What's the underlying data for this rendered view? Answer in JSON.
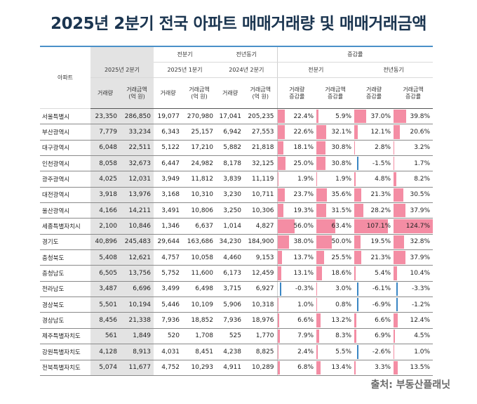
{
  "title": "2025년 2분기 전국 아파트 매매거래량 및 매매거래금액",
  "source": "출처: 부동산플래닛",
  "header": {
    "region": "아파트",
    "q2_2025": "2025년 2분기",
    "prev_quarter": "전분기",
    "prev_year": "전년동기",
    "change": "증감률",
    "q1_2025": "2025년 1분기",
    "q2_2024": "2024년 2분기",
    "change_prev_quarter": "전분기",
    "change_prev_year": "전년동기",
    "volume": "거래량",
    "amount_line1": "거래금액",
    "amount_line2": "(억 원)",
    "vol_change_line1": "거래량",
    "vol_change_line2": "증감률",
    "amt_change_line1": "거래금액",
    "amt_change_line2": "증감률"
  },
  "colors": {
    "title": "#1b3550",
    "positive_bar": "#f48da4",
    "negative_bar": "#3a86c4",
    "header_grey": "#e3e3e3"
  },
  "rows": [
    {
      "region": "서울특별시",
      "vol": "23,350",
      "amt": "286,850",
      "q1_vol": "19,077",
      "q1_amt": "270,980",
      "py_vol": "17,041",
      "py_amt": "205,235",
      "qv": "22.4%",
      "qa": "5.9%",
      "yv": "37.0%",
      "ya": "39.8%"
    },
    {
      "region": "부산광역시",
      "vol": "7,779",
      "amt": "33,234",
      "q1_vol": "6,343",
      "q1_amt": "25,157",
      "py_vol": "6,942",
      "py_amt": "27,553",
      "qv": "22.6%",
      "qa": "32.1%",
      "yv": "12.1%",
      "ya": "20.6%"
    },
    {
      "region": "대구광역시",
      "vol": "6,048",
      "amt": "22,511",
      "q1_vol": "5,122",
      "q1_amt": "17,210",
      "py_vol": "5,882",
      "py_amt": "21,818",
      "qv": "18.1%",
      "qa": "30.8%",
      "yv": "2.8%",
      "ya": "3.2%"
    },
    {
      "region": "인천광역시",
      "vol": "8,058",
      "amt": "32,673",
      "q1_vol": "6,447",
      "q1_amt": "24,982",
      "py_vol": "8,178",
      "py_amt": "32,125",
      "qv": "25.0%",
      "qa": "30.8%",
      "yv": "-1.5%",
      "ya": "1.7%"
    },
    {
      "region": "광주광역시",
      "vol": "4,025",
      "amt": "12,031",
      "q1_vol": "3,949",
      "q1_amt": "11,812",
      "py_vol": "3,839",
      "py_amt": "11,119",
      "qv": "1.9%",
      "qa": "1.9%",
      "yv": "4.8%",
      "ya": "8.2%"
    },
    {
      "region": "대전광역시",
      "vol": "3,918",
      "amt": "13,976",
      "q1_vol": "3,168",
      "q1_amt": "10,310",
      "py_vol": "3,230",
      "py_amt": "10,711",
      "qv": "23.7%",
      "qa": "35.6%",
      "yv": "21.3%",
      "ya": "30.5%"
    },
    {
      "region": "울산광역시",
      "vol": "4,166",
      "amt": "14,211",
      "q1_vol": "3,491",
      "q1_amt": "10,806",
      "py_vol": "3,250",
      "py_amt": "10,306",
      "qv": "19.3%",
      "qa": "31.5%",
      "yv": "28.2%",
      "ya": "37.9%"
    },
    {
      "region": "세종특별자치시",
      "vol": "2,100",
      "amt": "10,846",
      "q1_vol": "1,346",
      "q1_amt": "6,637",
      "py_vol": "1,014",
      "py_amt": "4,827",
      "qv": "56.0%",
      "qa": "63.4%",
      "yv": "107.1%",
      "ya": "124.7%"
    },
    {
      "region": "경기도",
      "vol": "40,896",
      "amt": "245,483",
      "q1_vol": "29,644",
      "q1_amt": "163,686",
      "py_vol": "34,230",
      "py_amt": "184,900",
      "qv": "38.0%",
      "qa": "50.0%",
      "yv": "19.5%",
      "ya": "32.8%"
    },
    {
      "region": "충청북도",
      "vol": "5,408",
      "amt": "12,621",
      "q1_vol": "4,757",
      "q1_amt": "10,058",
      "py_vol": "4,460",
      "py_amt": "9,153",
      "qv": "13.7%",
      "qa": "25.5%",
      "yv": "21.3%",
      "ya": "37.9%"
    },
    {
      "region": "충청남도",
      "vol": "6,505",
      "amt": "13,756",
      "q1_vol": "5,752",
      "q1_amt": "11,600",
      "py_vol": "6,173",
      "py_amt": "12,459",
      "qv": "13.1%",
      "qa": "18.6%",
      "yv": "5.4%",
      "ya": "10.4%"
    },
    {
      "region": "전라남도",
      "vol": "3,487",
      "amt": "6,696",
      "q1_vol": "3,499",
      "q1_amt": "6,498",
      "py_vol": "3,715",
      "py_amt": "6,927",
      "qv": "-0.3%",
      "qa": "3.0%",
      "yv": "-6.1%",
      "ya": "-3.3%"
    },
    {
      "region": "경상북도",
      "vol": "5,501",
      "amt": "10,194",
      "q1_vol": "5,446",
      "q1_amt": "10,109",
      "py_vol": "5,906",
      "py_amt": "10,318",
      "qv": "1.0%",
      "qa": "0.8%",
      "yv": "-6.9%",
      "ya": "-1.2%"
    },
    {
      "region": "경상남도",
      "vol": "8,456",
      "amt": "21,338",
      "q1_vol": "7,936",
      "q1_amt": "18,852",
      "py_vol": "7,936",
      "py_amt": "18,976",
      "qv": "6.6%",
      "qa": "13.2%",
      "yv": "6.6%",
      "ya": "12.4%"
    },
    {
      "region": "제주특별자치도",
      "vol": "561",
      "amt": "1,849",
      "q1_vol": "520",
      "q1_amt": "1,708",
      "py_vol": "525",
      "py_amt": "1,770",
      "qv": "7.9%",
      "qa": "8.3%",
      "yv": "6.9%",
      "ya": "4.5%"
    },
    {
      "region": "강원특별자치도",
      "vol": "4,128",
      "amt": "8,913",
      "q1_vol": "4,031",
      "q1_amt": "8,451",
      "py_vol": "4,238",
      "py_amt": "8,825",
      "qv": "2.4%",
      "qa": "5.5%",
      "yv": "-2.6%",
      "ya": "1.0%"
    },
    {
      "region": "전북특별자치도",
      "vol": "5,074",
      "amt": "11,677",
      "q1_vol": "4,752",
      "q1_amt": "10,293",
      "py_vol": "4,911",
      "py_amt": "10,289",
      "qv": "6.8%",
      "qa": "13.4%",
      "yv": "3.3%",
      "ya": "13.5%"
    }
  ]
}
